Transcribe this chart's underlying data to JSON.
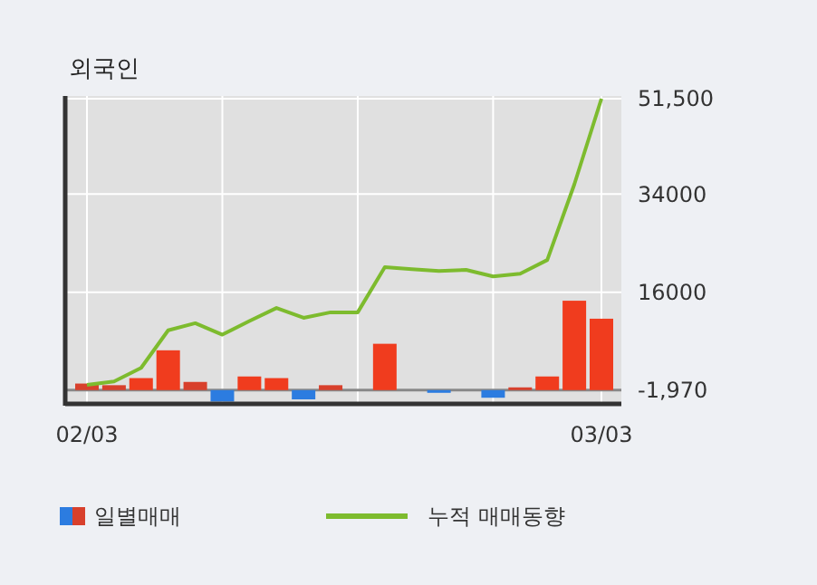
{
  "chart_data": {
    "type": "bar",
    "title": "외국인",
    "categories": [
      "02/03",
      null,
      null,
      null,
      null,
      null,
      null,
      null,
      null,
      null,
      null,
      null,
      null,
      null,
      null,
      null,
      null,
      null,
      null,
      "03/03"
    ],
    "ylim": [
      -4500,
      52000
    ],
    "yticks": [
      {
        "value": -1970,
        "label": "-1,970"
      },
      16000,
      34000,
      {
        "value": 51500,
        "label": "51,500"
      }
    ],
    "grid": true,
    "legend": "bottom",
    "ref_lines": [
      {
        "axis": "y",
        "value": -1970,
        "color": "#888888"
      }
    ],
    "series": [
      {
        "name": "일별매매",
        "base": [
          -1970,
          -1970,
          -1970,
          -1970,
          -1970,
          -1970,
          -1970,
          -1970,
          -1970,
          -1970,
          null,
          -1970,
          null,
          -1970,
          null,
          -1970,
          -1970,
          -1970,
          -1970,
          -1970
        ],
        "values": [
          1200,
          900,
          2200,
          7300,
          1500,
          -2100,
          2500,
          2200,
          -1700,
          900,
          null,
          8500,
          null,
          -500,
          null,
          -1400,
          500,
          2500,
          16400,
          13100
        ],
        "colors": [
          "#d8402c",
          "#d8402c",
          "#f03c1e",
          "#f03c1e",
          "#d8402c",
          "#2c7ce0",
          "#f03c1e",
          "#f03c1e",
          "#2c7ce0",
          "#d8402c",
          null,
          "#f03c1e",
          null,
          "#2c7ce0",
          null,
          "#2c7ce0",
          "#d8402c",
          "#f03c1e",
          "#f03c1e",
          "#f03c1e"
        ]
      },
      {
        "name": "누적 매매동향",
        "type": "line",
        "color": "#7dbb2e",
        "values": [
          -1000,
          -400,
          2100,
          9000,
          10300,
          8200,
          10700,
          13100,
          11300,
          12300,
          12300,
          20600,
          20200,
          19900,
          20100,
          18900,
          19400,
          21900,
          35800,
          51500
        ]
      }
    ]
  }
}
